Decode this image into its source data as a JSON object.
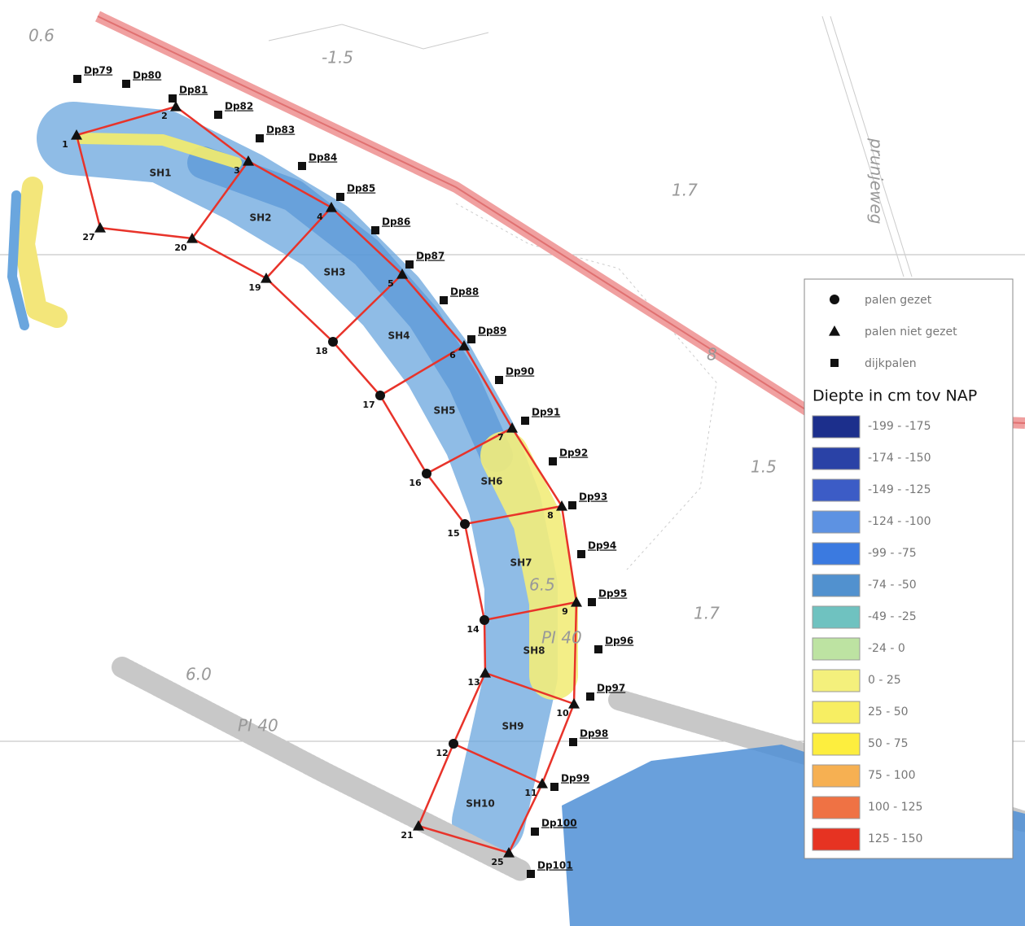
{
  "map_labels": [
    "0.6",
    "-1.5",
    "1.7",
    "prunjeweg",
    "8",
    "1.5",
    "1.7",
    "6.0",
    "PI 40",
    "PI 40",
    "6.5"
  ],
  "dike_poles": [
    "Dp79",
    "Dp80",
    "Dp81",
    "Dp82",
    "Dp83",
    "Dp84",
    "Dp85",
    "Dp86",
    "Dp87",
    "Dp88",
    "Dp89",
    "Dp90",
    "Dp91",
    "Dp92",
    "Dp93",
    "Dp94",
    "Dp95",
    "Dp96",
    "Dp97",
    "Dp98",
    "Dp99",
    "Dp100",
    "Dp101"
  ],
  "points": [
    "1",
    "2",
    "3",
    "4",
    "5",
    "6",
    "7",
    "8",
    "9",
    "10",
    "11",
    "12",
    "13",
    "14",
    "15",
    "16",
    "17",
    "18",
    "19",
    "20",
    "21",
    "25",
    "27"
  ],
  "sections": [
    "SH1",
    "SH2",
    "SH3",
    "SH4",
    "SH5",
    "SH6",
    "SH7",
    "SH8",
    "SH9",
    "SH10"
  ],
  "legend": {
    "symbols": [
      "palen gezet",
      "palen niet gezet",
      "dijkpalen"
    ],
    "title": "Diepte in cm tov NAP",
    "classes": [
      {
        "label": "-199 - -175",
        "color": "#1c2f8c"
      },
      {
        "label": "-174 - -150",
        "color": "#2a42a6"
      },
      {
        "label": "-149 - -125",
        "color": "#3c5cc6"
      },
      {
        "label": "-124 - -100",
        "color": "#5d92e2"
      },
      {
        "label": "-99 - -75",
        "color": "#3b7ae0"
      },
      {
        "label": "-74 - -50",
        "color": "#5191cf"
      },
      {
        "label": "-49 - -25",
        "color": "#6fc2c0"
      },
      {
        "label": "-24 - 0",
        "color": "#bde3a2"
      },
      {
        "label": "0 - 25",
        "color": "#f4f07c"
      },
      {
        "label": "25 - 50",
        "color": "#f7ee62"
      },
      {
        "label": "50 - 75",
        "color": "#fdee3e"
      },
      {
        "label": "75 - 100",
        "color": "#f6b052"
      },
      {
        "label": "100 - 125",
        "color": "#ef7244"
      },
      {
        "label": "125 - 150",
        "color": "#e63322"
      }
    ]
  }
}
